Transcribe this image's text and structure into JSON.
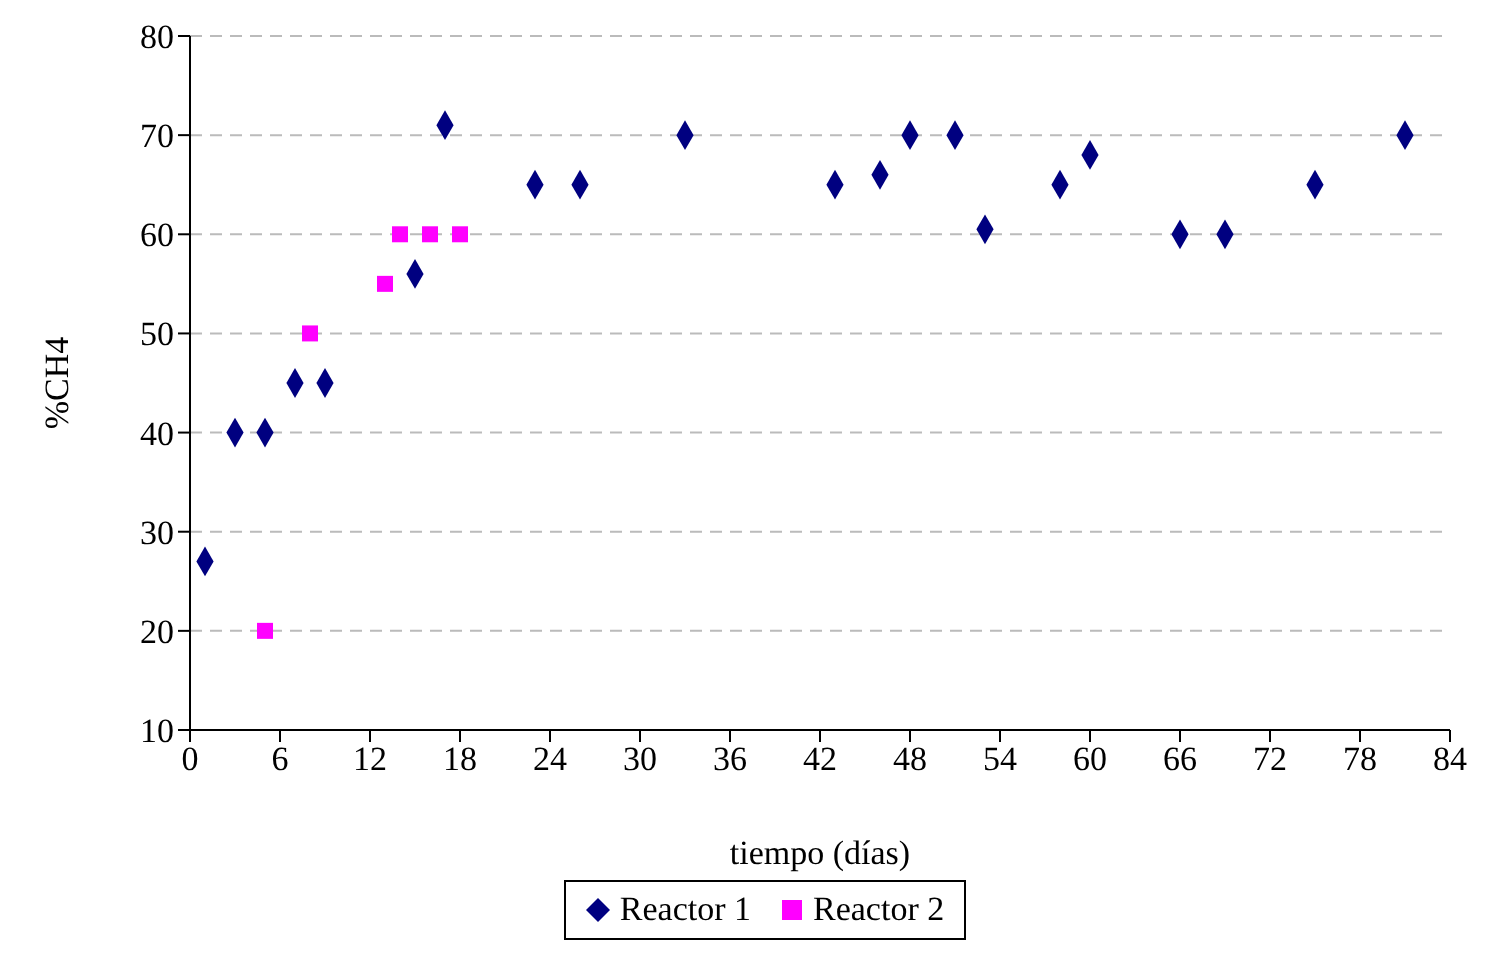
{
  "chart_data": {
    "type": "scatter",
    "xlabel": "tiempo (días)",
    "ylabel": "%CH4",
    "xlim": [
      0,
      84
    ],
    "xticks": [
      0,
      6,
      12,
      18,
      24,
      30,
      36,
      42,
      48,
      54,
      60,
      66,
      72,
      78,
      84
    ],
    "ylim": [
      10,
      80
    ],
    "yticks": [
      10,
      20,
      30,
      40,
      50,
      60,
      70,
      80
    ],
    "grid": "y",
    "legend": "bottom",
    "series": [
      {
        "name": "Reactor 1",
        "color": "#000080",
        "marker": "diamond",
        "x": [
          1,
          3,
          5,
          7,
          9,
          15,
          17,
          23,
          26,
          33,
          43,
          46,
          48,
          51,
          53,
          58,
          60,
          66,
          69,
          75,
          81
        ],
        "values": [
          27,
          40,
          40,
          45,
          45,
          56,
          71,
          65,
          65,
          70,
          65,
          66,
          70,
          70,
          60.5,
          65,
          68,
          60,
          60,
          65,
          70
        ]
      },
      {
        "name": "Reactor 2",
        "color": "#ff00ff",
        "marker": "square",
        "x": [
          5,
          8,
          13,
          14,
          16,
          18
        ],
        "values": [
          20,
          50,
          55,
          60,
          60,
          60
        ]
      }
    ]
  }
}
